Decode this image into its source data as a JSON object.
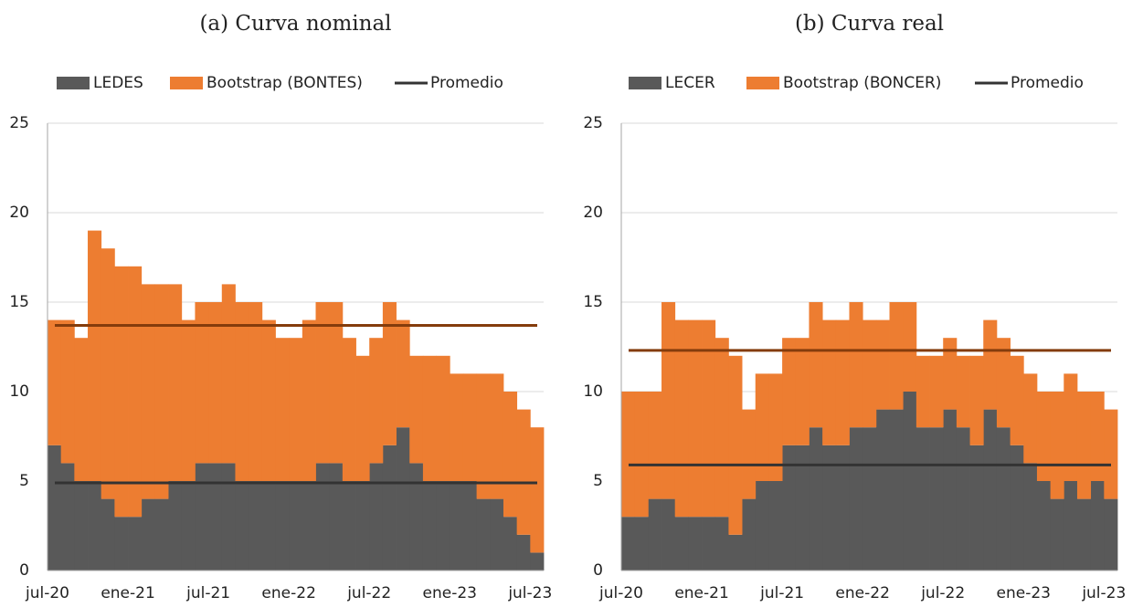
{
  "chart_data": [
    {
      "type": "bar",
      "stacked": true,
      "title": "(a) Curva nominal",
      "categories": [
        "jul-20",
        null,
        null,
        null,
        null,
        null,
        "ene-21",
        null,
        null,
        null,
        null,
        null,
        "jul-21",
        null,
        null,
        null,
        null,
        null,
        "ene-22",
        null,
        null,
        null,
        null,
        null,
        "jul-22",
        null,
        null,
        null,
        null,
        null,
        "ene-23",
        null,
        null,
        null,
        null,
        null,
        "jul-23"
      ],
      "series": [
        {
          "name": "LEDES",
          "color": "#595959",
          "values": [
            7,
            6,
            5,
            5,
            4,
            3,
            3,
            4,
            4,
            5,
            5,
            6,
            6,
            6,
            5,
            5,
            5,
            5,
            5,
            5,
            6,
            6,
            5,
            5,
            6,
            7,
            8,
            6,
            5,
            5,
            5,
            5,
            4,
            4,
            3,
            2,
            1
          ]
        },
        {
          "name": "Bootstrap (BONTES)",
          "color": "#ed7d31",
          "values": [
            7,
            8,
            8,
            14,
            14,
            14,
            14,
            12,
            12,
            11,
            9,
            9,
            9,
            10,
            10,
            10,
            9,
            8,
            8,
            9,
            9,
            9,
            8,
            7,
            7,
            8,
            6,
            6,
            7,
            7,
            6,
            6,
            7,
            7,
            7,
            7,
            7
          ]
        }
      ],
      "averages": {
        "name": "Promedio",
        "color": "#333333",
        "values": [
          4.9,
          13.7
        ],
        "colors": [
          "#333333",
          "#843c0c"
        ]
      },
      "ylim": [
        0,
        25
      ],
      "yticks": [
        0,
        5,
        10,
        15,
        20,
        25
      ],
      "grid": true
    },
    {
      "type": "bar",
      "stacked": true,
      "title": "(b) Curva real",
      "categories": [
        "jul-20",
        null,
        null,
        null,
        null,
        null,
        "ene-21",
        null,
        null,
        null,
        null,
        null,
        "jul-21",
        null,
        null,
        null,
        null,
        null,
        "ene-22",
        null,
        null,
        null,
        null,
        null,
        "jul-22",
        null,
        null,
        null,
        null,
        null,
        "ene-23",
        null,
        null,
        null,
        null,
        null,
        "jul-23"
      ],
      "series": [
        {
          "name": "LECER",
          "color": "#595959",
          "values": [
            3,
            3,
            4,
            4,
            3,
            3,
            3,
            3,
            2,
            4,
            5,
            5,
            7,
            7,
            8,
            7,
            7,
            8,
            8,
            9,
            9,
            10,
            8,
            8,
            9,
            8,
            7,
            9,
            8,
            7,
            6,
            5,
            4,
            5,
            4,
            5,
            4
          ]
        },
        {
          "name": "Bootstrap (BONCER)",
          "color": "#ed7d31",
          "values": [
            7,
            7,
            6,
            11,
            11,
            11,
            11,
            10,
            10,
            5,
            6,
            6,
            6,
            6,
            7,
            7,
            7,
            7,
            6,
            5,
            6,
            5,
            4,
            4,
            4,
            4,
            5,
            5,
            5,
            5,
            5,
            5,
            6,
            6,
            6,
            5,
            5
          ]
        }
      ],
      "averages": {
        "name": "Promedio",
        "color": "#333333",
        "values": [
          5.9,
          12.3
        ],
        "colors": [
          "#333333",
          "#843c0c"
        ]
      },
      "ylim": [
        0,
        25
      ],
      "yticks": [
        0,
        5,
        10,
        15,
        20,
        25
      ],
      "grid": true
    }
  ]
}
